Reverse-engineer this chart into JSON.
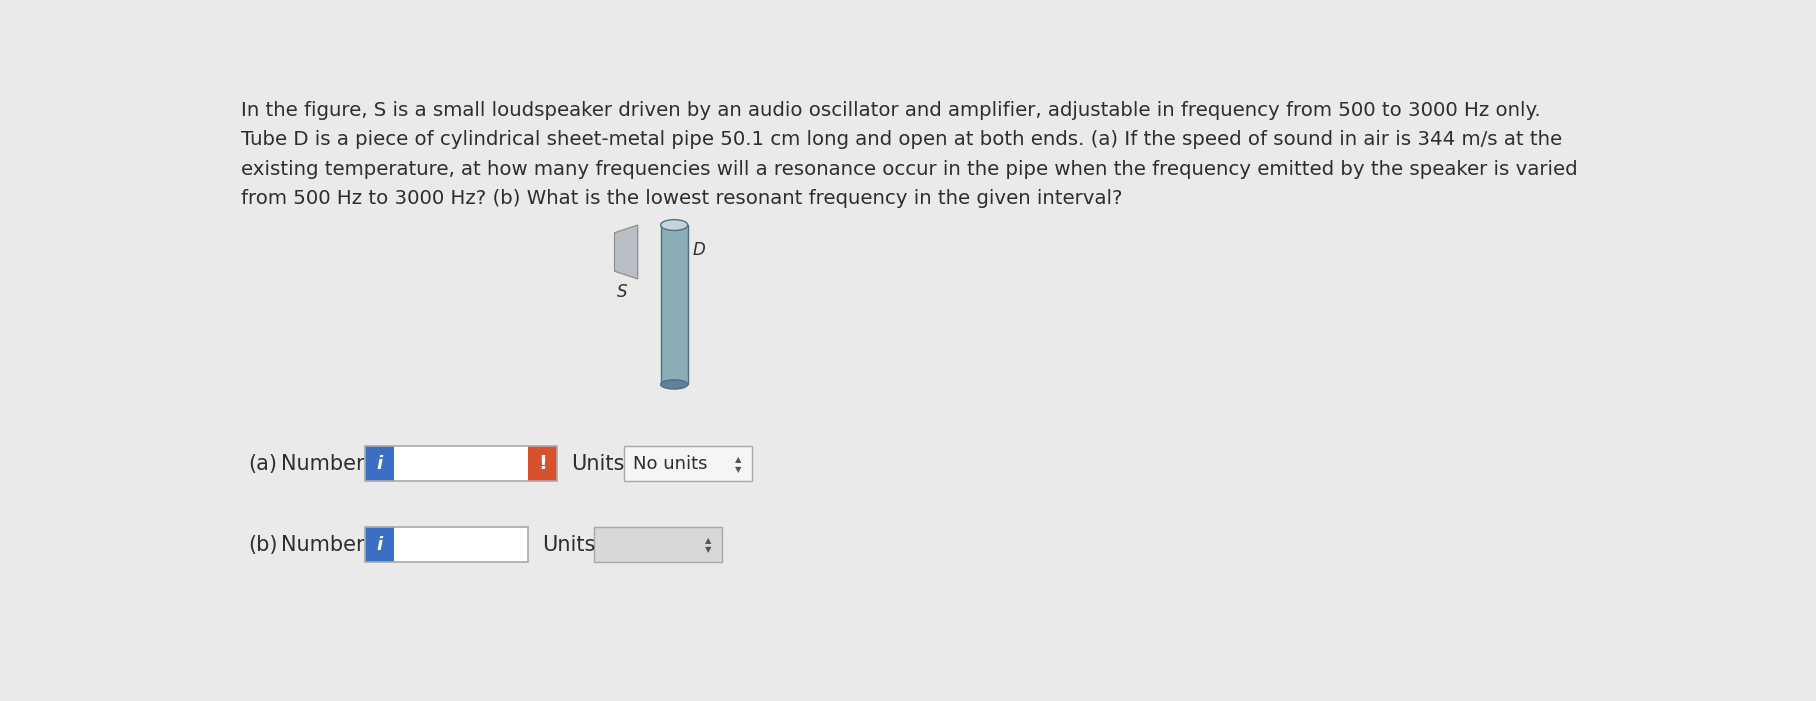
{
  "bg_color": "#eaeaea",
  "text_color": "#2e2e2e",
  "paragraph_lines": [
    "In the figure, S is a small loudspeaker driven by an audio oscillator and amplifier, adjustable in frequency from 500 to 3000 Hz only.",
    "Tube D is a piece of cylindrical sheet-metal pipe 50.1 cm long and open at both ends. (a) If the speed of sound in air is 344 m/s at the",
    "existing temperature, at how many frequencies will a resonance occur in the pipe when the frequency emitted by the speaker is varied",
    "from 500 Hz to 3000 Hz? (b) What is the lowest resonant frequency in the given interval?"
  ],
  "label_a": "(a)",
  "label_b": "(b)",
  "number_label": "Number",
  "units_label": "Units",
  "no_units_text": "No units",
  "input_bg": "#ffffff",
  "blue_btn_color": "#3a6fc4",
  "red_btn_color": "#d9512c",
  "label_s": "S",
  "label_d": "D",
  "speaker_face": "#b8bec4",
  "speaker_edge": "#888888",
  "pipe_body": "#8aadb8",
  "pipe_top": "#c5d5dc",
  "pipe_bottom": "#6080a0",
  "pipe_edge": "#507080"
}
